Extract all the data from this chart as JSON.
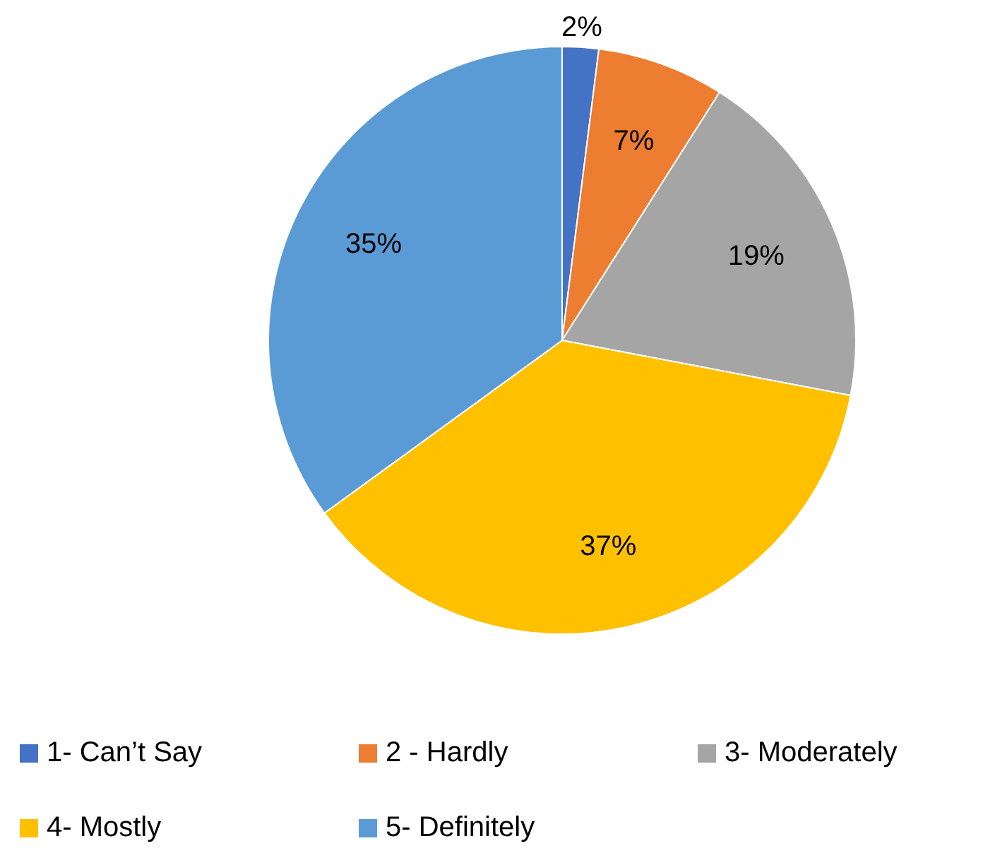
{
  "chart_data": {
    "type": "pie",
    "categories": [
      "1- Can’t Say",
      "2 - Hardly",
      "3- Moderately",
      "4- Mostly",
      "5- Definitely"
    ],
    "values": [
      2,
      7,
      19,
      37,
      35
    ],
    "colors": [
      "#4472c4",
      "#ed7d31",
      "#a5a5a5",
      "#ffc000",
      "#5b9bd5"
    ],
    "value_labels": [
      "2%",
      "7%",
      "19%",
      "37%",
      "35%"
    ],
    "legend": "bottom"
  }
}
